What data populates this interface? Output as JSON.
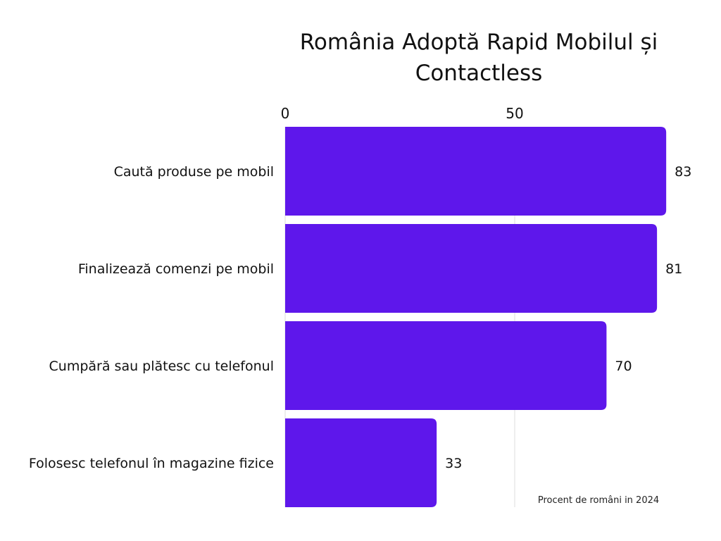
{
  "chart_data": {
    "type": "bar",
    "orientation": "horizontal",
    "title": "România Adoptă Rapid Mobilul și Contactless",
    "categories": [
      "Caută produse pe mobil",
      "Finalizează comenzi pe mobil",
      "Cumpără sau plătesc cu telefonul",
      "Folosesc telefonul în magazine fizice"
    ],
    "values": [
      83,
      81,
      70,
      33
    ],
    "xticks": [
      "0",
      "50"
    ],
    "xtick_values": [
      0,
      50
    ],
    "xaxis_position": "top",
    "grid": true,
    "annotation": "Procent de români in 2024",
    "bar_color": "#5e17eb",
    "data_labels": true
  }
}
